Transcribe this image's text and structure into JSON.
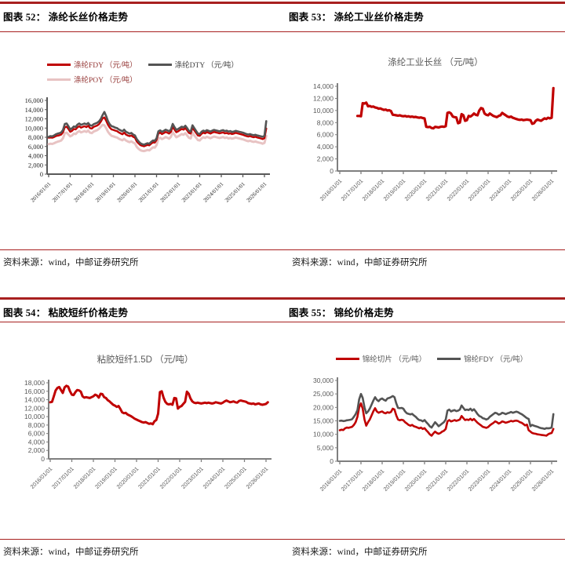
{
  "accent_red": "#a8201f",
  "panels": [
    {
      "header": "图表 52： 涤纶长丝价格走势",
      "source": "资料来源：wind，中邮证券研究所"
    },
    {
      "header": "图表 53： 涤纶工业丝价格走势",
      "source": "资料来源：wind，中邮证券研究所"
    },
    {
      "header": "图表 54： 粘胶短纤价格走势",
      "source": "资料来源：wind，中邮证券研究所"
    },
    {
      "header": "图表 55： 锦纶价格走势",
      "source": "资料来源：wind，中邮证券研究所"
    }
  ],
  "chart_data": [
    {
      "type": "line",
      "title": "",
      "legend_position": "top",
      "grid": false,
      "ylim": [
        0,
        16000
      ],
      "y_tick_step": 2000,
      "x_range": [
        2016,
        2026.3
      ],
      "x_tick_labels": [
        "2016/01/01",
        "2017/01/01",
        "2018/01/01",
        "2019/01/01",
        "2020/01/01",
        "2021/01/01",
        "2022/01/01",
        "2023/01/01",
        "2024/01/01",
        "2025/01/01",
        "2026/01/01"
      ],
      "draw_order": [
        2,
        0,
        1
      ],
      "series": [
        {
          "name": "涤纶FDY （元/吨）",
          "color": "#c00000",
          "stroke_width": 2.4,
          "x_start": 2016,
          "x_step": 0.08333,
          "values": [
            7900,
            7950,
            7900,
            8050,
            8250,
            8350,
            8450,
            8600,
            9100,
            10200,
            10300,
            9800,
            9200,
            9400,
            9800,
            9700,
            10150,
            10400,
            10100,
            10250,
            10400,
            10200,
            10500,
            10000,
            9900,
            10250,
            10400,
            10550,
            10850,
            11400,
            12100,
            12300,
            11600,
            10700,
            10100,
            9700,
            9600,
            9450,
            9350,
            9050,
            8850,
            8650,
            9000,
            8600,
            8400,
            8250,
            8400,
            8100,
            7900,
            7100,
            6650,
            6300,
            6150,
            6050,
            6200,
            6350,
            6250,
            6600,
            6900,
            6850,
            7400,
            8800,
            9000,
            8700,
            8900,
            9150,
            9000,
            8800,
            9200,
            10300,
            9650,
            9100,
            9300,
            9550,
            9800,
            9650,
            10000,
            9500,
            8950,
            8800,
            10100,
            9500,
            8950,
            8400,
            8300,
            8750,
            9000,
            8850,
            9100,
            8950,
            8800,
            9000,
            9150,
            9050,
            8950,
            8850,
            8950,
            9050,
            8850,
            8950,
            8750,
            8850,
            8700,
            8800,
            8950,
            8850,
            8750,
            8650,
            8550,
            8400,
            8250,
            8150,
            8250,
            8100,
            8000,
            8100,
            7950,
            7850,
            7750,
            7600,
            7800,
            9900
          ]
        },
        {
          "name": "涤纶DTY （元/吨）",
          "color": "#545454",
          "stroke_width": 2.6,
          "x_start": 2016,
          "x_step": 0.08333,
          "values": [
            8100,
            8250,
            8200,
            8400,
            8650,
            8800,
            8900,
            9050,
            9600,
            10900,
            11000,
            10400,
            9700,
            9950,
            10350,
            10250,
            10750,
            11000,
            10700,
            10850,
            11000,
            10800,
            11100,
            10600,
            10500,
            10850,
            11000,
            11150,
            11450,
            12000,
            12800,
            13500,
            12600,
            11500,
            10800,
            10400,
            10300,
            10100,
            10000,
            9700,
            9500,
            9300,
            9650,
            9200,
            9000,
            8800,
            8950,
            8600,
            8400,
            7600,
            7100,
            6700,
            6500,
            6400,
            6550,
            6700,
            6600,
            7000,
            7300,
            7250,
            7800,
            9300,
            9500,
            9200,
            9400,
            9650,
            9500,
            9300,
            9700,
            10900,
            10200,
            9600,
            9800,
            10050,
            10300,
            10150,
            10500,
            10000,
            9400,
            9250,
            10600,
            10000,
            9400,
            8800,
            8700,
            9200,
            9450,
            9300,
            9550,
            9400,
            9250,
            9450,
            9600,
            9500,
            9400,
            9300,
            9450,
            9550,
            9350,
            9450,
            9250,
            9350,
            9150,
            9250,
            9400,
            9300,
            9200,
            9100,
            9000,
            8850,
            8700,
            8600,
            8700,
            8550,
            8450,
            8550,
            8400,
            8300,
            8200,
            8100,
            8300,
            11500
          ]
        },
        {
          "name": "涤纶POY （元/吨）",
          "color": "#e8c3c3",
          "stroke_width": 3.0,
          "x_start": 2016,
          "x_step": 0.08333,
          "values": [
            6500,
            6600,
            6550,
            6700,
            6900,
            7050,
            7150,
            7300,
            7800,
            8900,
            9000,
            8600,
            8200,
            8400,
            8800,
            8700,
            9100,
            9350,
            9050,
            9200,
            9350,
            9150,
            9450,
            9000,
            8900,
            9250,
            9400,
            9550,
            9850,
            10300,
            10700,
            10600,
            10000,
            9200,
            8700,
            8300,
            8200,
            8050,
            7950,
            7700,
            7500,
            7350,
            7650,
            7300,
            7100,
            6950,
            7100,
            6850,
            6650,
            5900,
            5500,
            5200,
            5050,
            5000,
            5100,
            5250,
            5150,
            5500,
            5800,
            5750,
            6300,
            7700,
            7900,
            7600,
            7800,
            8050,
            7900,
            7700,
            8100,
            9100,
            8550,
            8000,
            8200,
            8450,
            8700,
            8550,
            8900,
            8400,
            7900,
            7750,
            9000,
            8400,
            7900,
            7400,
            7300,
            7750,
            8000,
            7850,
            8100,
            7950,
            7800,
            8000,
            8150,
            8050,
            7950,
            7850,
            7950,
            8050,
            7850,
            7950,
            7750,
            7850,
            7700,
            7800,
            7950,
            7850,
            7750,
            7650,
            7550,
            7400,
            7250,
            7150,
            7250,
            7100,
            7000,
            7100,
            6950,
            6850,
            6750,
            6600,
            6800,
            8300
          ]
        }
      ]
    },
    {
      "type": "line",
      "title": "涤纶工业长丝 （元/吨）",
      "legend_position": "none",
      "grid": false,
      "ylim": [
        0,
        14000
      ],
      "y_tick_step": 2000,
      "x_range": [
        2016,
        2026.3
      ],
      "x_tick_labels": [
        "2016/01/01",
        "2017/01/01",
        "2018/01/01",
        "2019/01/01",
        "2020/01/01",
        "2021/01/01",
        "2022/01/01",
        "2023/01/01",
        "2024/01/01",
        "2025/01/01",
        "2026/01/01"
      ],
      "draw_order": [
        0
      ],
      "series": [
        {
          "name": "涤纶工业长丝 （元/吨）",
          "color": "#c00000",
          "stroke_width": 3.2,
          "x_start": 2016.8333,
          "x_step": 0.08333,
          "values": [
            9100,
            9100,
            9050,
            11200,
            11150,
            11300,
            10700,
            10750,
            10600,
            10650,
            10500,
            10450,
            10300,
            10350,
            10200,
            10100,
            10150,
            10000,
            10050,
            9900,
            9300,
            9250,
            9200,
            9150,
            9200,
            9100,
            9050,
            9100,
            9000,
            9050,
            8950,
            9000,
            8900,
            8950,
            8850,
            8800,
            8850,
            8750,
            8700,
            7300,
            7250,
            7300,
            7100,
            7050,
            7300,
            7250,
            7200,
            7300,
            7350,
            7300,
            7400,
            9600,
            9700,
            9500,
            9000,
            8900,
            8850,
            7900,
            8000,
            9400,
            9200,
            8300,
            8400,
            9100,
            9000,
            9200,
            9500,
            9300,
            9200,
            10000,
            10400,
            10300,
            9500,
            9300,
            9200,
            9500,
            9300,
            9100,
            9000,
            8900,
            9100,
            9200,
            9600,
            9400,
            9200,
            9000,
            8900,
            9000,
            8800,
            8700,
            8600,
            8500,
            8450,
            8500,
            8400,
            8450,
            8500,
            8450,
            8400,
            7800,
            7900,
            8300,
            8500,
            8400,
            8300,
            8500,
            8700,
            8600,
            8800,
            8700,
            8800,
            13700
          ]
        }
      ]
    },
    {
      "type": "line",
      "title": "粘胶短纤1.5D （元/吨）",
      "legend_position": "none",
      "grid": false,
      "ylim": [
        0,
        18000
      ],
      "y_tick_step": 2000,
      "x_range": [
        2016,
        2026.3
      ],
      "x_tick_labels": [
        "2016/01/01",
        "2017/01/01",
        "2018/01/01",
        "2019/01/01",
        "2020/01/01",
        "2021/01/01",
        "2022/01/01",
        "2023/01/01",
        "2024/01/01",
        "2025/01/01",
        "2026/01/01"
      ],
      "draw_order": [
        0
      ],
      "series": [
        {
          "name": "粘胶短纤1.5D （元/吨）",
          "color": "#c00000",
          "stroke_width": 3.0,
          "x_start": 2016,
          "x_step": 0.08333,
          "values": [
            13400,
            13500,
            14800,
            16200,
            16800,
            17000,
            16300,
            15600,
            16900,
            17300,
            17100,
            16000,
            15200,
            15100,
            15800,
            16300,
            16200,
            15900,
            14800,
            14500,
            14600,
            14500,
            14400,
            14600,
            14800,
            15200,
            15000,
            14500,
            15400,
            15300,
            14600,
            14400,
            13900,
            13600,
            13200,
            12800,
            12600,
            12300,
            12500,
            11800,
            11000,
            10800,
            10900,
            10500,
            10300,
            10100,
            9800,
            9500,
            9300,
            9100,
            8900,
            8700,
            8600,
            8700,
            8500,
            8300,
            8400,
            8200,
            8900,
            9200,
            10700,
            15800,
            16000,
            14500,
            13500,
            13000,
            12900,
            13000,
            12800,
            14400,
            14300,
            11900,
            12300,
            12500,
            13000,
            13500,
            15900,
            15400,
            14300,
            13600,
            13300,
            13200,
            13300,
            13200,
            13100,
            13200,
            13300,
            13200,
            13300,
            13200,
            13100,
            13200,
            13400,
            13300,
            13200,
            13100,
            13300,
            13600,
            13800,
            13600,
            13400,
            13500,
            13600,
            13400,
            13300,
            13700,
            13800,
            13700,
            13600,
            13500,
            13200,
            13100,
            13000,
            13100,
            12900,
            13000,
            13100,
            12900,
            12800,
            12900,
            13000,
            13400
          ]
        }
      ]
    },
    {
      "type": "line",
      "title": "",
      "legend_position": "top",
      "grid": false,
      "ylim": [
        0,
        30000
      ],
      "y_tick_step": 5000,
      "x_range": [
        2016,
        2026.3
      ],
      "x_tick_labels": [
        "2016/01/01",
        "2017/01/01",
        "2018/01/01",
        "2019/01/01",
        "2020/01/01",
        "2021/01/01",
        "2022/01/01",
        "2023/01/01",
        "2024/01/01",
        "2025/01/01",
        "2026/01/01"
      ],
      "draw_order": [
        0,
        1
      ],
      "series": [
        {
          "name": "锦纶切片 （元/吨）",
          "color": "#c00000",
          "stroke_width": 2.6,
          "x_start": 2016,
          "x_step": 0.08333,
          "values": [
            11500,
            11700,
            11600,
            12200,
            12500,
            12400,
            12600,
            12800,
            13500,
            14500,
            16500,
            20000,
            21500,
            19500,
            15500,
            13200,
            14500,
            15500,
            17000,
            18500,
            19700,
            18500,
            18000,
            18300,
            18500,
            18000,
            17800,
            18200,
            18000,
            18300,
            19500,
            19200,
            17000,
            15500,
            15200,
            15400,
            15200,
            14500,
            14000,
            13500,
            13200,
            13500,
            13000,
            12800,
            12500,
            12200,
            12500,
            12000,
            12300,
            11500,
            10800,
            10000,
            9500,
            10300,
            11000,
            10500,
            10200,
            10500,
            11000,
            11300,
            12000,
            14800,
            15300,
            14800,
            15000,
            15300,
            15000,
            15200,
            15500,
            16800,
            16000,
            15300,
            15500,
            15300,
            15800,
            15200,
            15700,
            15000,
            14300,
            13800,
            13300,
            12800,
            12600,
            12400,
            12700,
            13300,
            13800,
            14200,
            14800,
            14500,
            14000,
            14300,
            14800,
            14600,
            14300,
            14500,
            14700,
            15000,
            14800,
            15000,
            15100,
            14900,
            14500,
            14300,
            13800,
            13300,
            13600,
            11500,
            11000,
            10500,
            10300,
            10200,
            10000,
            9900,
            9800,
            9700,
            9600,
            9500,
            10000,
            10300,
            10500,
            12000
          ]
        },
        {
          "name": "锦纶FDY （元/吨）",
          "color": "#545454",
          "stroke_width": 2.6,
          "x_start": 2016,
          "x_step": 0.08333,
          "values": [
            15000,
            15100,
            14900,
            15000,
            15200,
            15300,
            15400,
            15600,
            16500,
            17500,
            19000,
            23000,
            25000,
            23500,
            20000,
            17800,
            18500,
            19500,
            21000,
            22500,
            23800,
            22800,
            22300,
            23000,
            23300,
            22800,
            22500,
            23300,
            23500,
            23800,
            24200,
            23800,
            21500,
            19800,
            19700,
            19800,
            19500,
            18500,
            17800,
            17600,
            17400,
            17600,
            17000,
            16500,
            15800,
            15300,
            15200,
            14800,
            15300,
            14500,
            13800,
            13000,
            12500,
            13500,
            14500,
            13800,
            13000,
            13500,
            14000,
            14500,
            15500,
            18800,
            19200,
            18500,
            18800,
            19000,
            18600,
            18800,
            19200,
            20700,
            19800,
            19000,
            19200,
            19000,
            19500,
            18800,
            19300,
            18500,
            17500,
            16800,
            16500,
            16000,
            15800,
            15500,
            15800,
            16500,
            17000,
            17500,
            18000,
            17800,
            17300,
            17500,
            18000,
            17800,
            17500,
            17800,
            18000,
            18300,
            18000,
            18200,
            18400,
            18200,
            17800,
            17500,
            17000,
            16500,
            16000,
            15700,
            13000,
            13500,
            13200,
            13000,
            12800,
            12500,
            12300,
            12200,
            12000,
            12300,
            12200,
            12300,
            12500,
            17500
          ]
        }
      ]
    }
  ]
}
